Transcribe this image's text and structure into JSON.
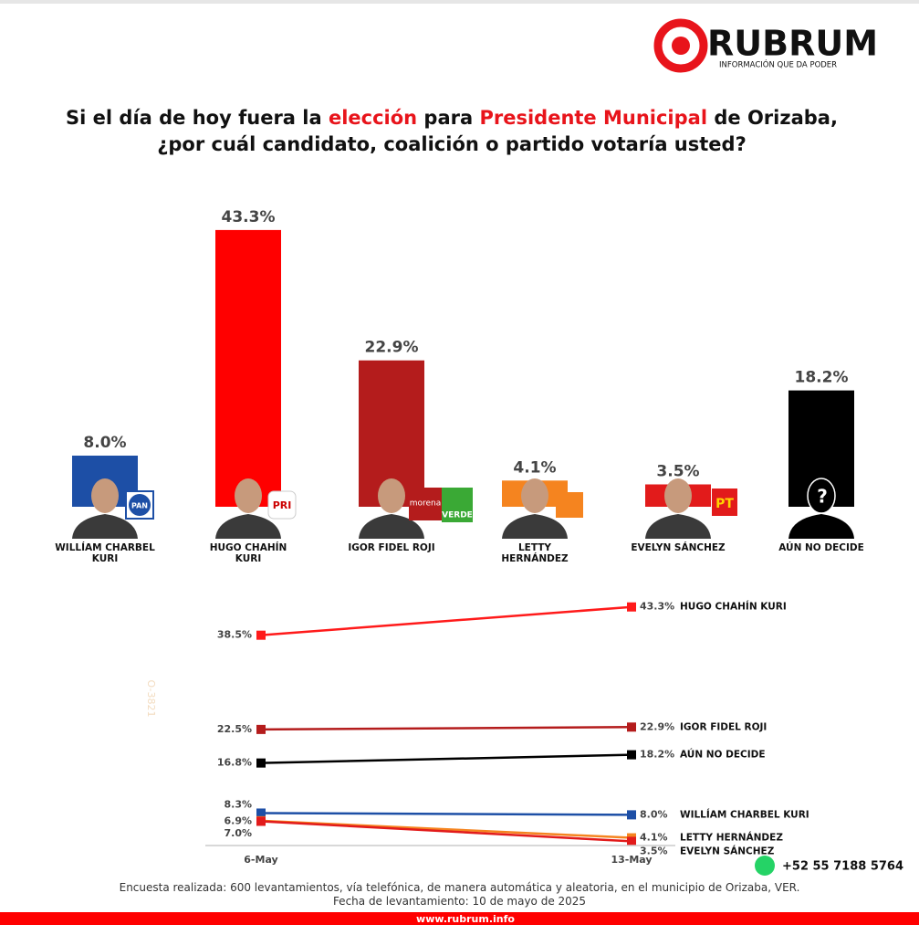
{
  "header": {
    "logo": "RUBRUM",
    "tagline": "INFORMACIÓN QUE DA PODER"
  },
  "title": [
    "Si el día de hoy fuera la ",
    "elección",
    " para ",
    "Presidente Municipal",
    " de Orizaba,",
    "¿por cuál candidato, coalición o partido votaría usted?"
  ],
  "chart_data": [
    {
      "type": "bar",
      "categories": [
        "WILLÍAM CHARBEL KURI",
        "HUGO CHAHÍN KURI",
        "IGOR FIDEL ROJI",
        "LETTY HERNÁNDEZ",
        "EVELYN SÁNCHEZ",
        "AÚN NO DECIDE"
      ],
      "values": [
        8.0,
        43.3,
        22.9,
        4.1,
        3.5,
        18.2
      ],
      "value_labels": [
        "8.0%",
        "43.3%",
        "22.9%",
        "4.1%",
        "3.5%",
        "18.2%"
      ],
      "colors": [
        "#1d4fa6",
        "#ff0000",
        "#b41c1c",
        "#f5841f",
        "#e21b1b",
        "#000000"
      ]
    },
    {
      "type": "line",
      "x": [
        "6-May",
        "13-May"
      ],
      "series": [
        {
          "name": "HUGO CHAHÍN KURI",
          "color": "#ff1a1a",
          "values": [
            38.5,
            43.3
          ],
          "value_labels": [
            "38.5%",
            "43.3%"
          ]
        },
        {
          "name": "IGOR FIDEL ROJI",
          "color": "#b41c1c",
          "values": [
            22.5,
            22.9
          ],
          "value_labels": [
            "22.5%",
            "22.9%"
          ]
        },
        {
          "name": "AÚN NO DECIDE",
          "color": "#000000",
          "values": [
            16.8,
            18.2
          ],
          "value_labels": [
            "16.8%",
            "18.2%"
          ]
        },
        {
          "name": "WILLÍAM CHARBEL KURI",
          "color": "#1d4fa6",
          "values": [
            8.3,
            8.0
          ],
          "value_labels": [
            "8.3%",
            "8.0%"
          ]
        },
        {
          "name": "LETTY HERNÁNDEZ",
          "color": "#f5841f",
          "values": [
            7.0,
            4.1
          ],
          "value_labels": [
            "7.0%",
            "4.1%"
          ]
        },
        {
          "name": "EVELYN SÁNCHEZ",
          "color": "#e21b1b",
          "values": [
            6.9,
            3.5
          ],
          "value_labels": [
            "6.9%",
            "3.5%"
          ]
        }
      ]
    }
  ],
  "logos": [
    "PAN",
    "PRI",
    "morena",
    "VERDE",
    "PT",
    "?"
  ],
  "watermark": "O-3821",
  "footer": {
    "phone": "+52 55 7188 5764",
    "note": "Encuesta realizada: 600 levantamientos, vía telefónica, de manera automática y aleatoria, en el municipio de Orizaba, VER.",
    "date": "Fecha de levantamiento: 10 de mayo de 2025",
    "url": "www.rubrum.info"
  }
}
